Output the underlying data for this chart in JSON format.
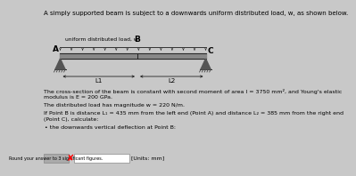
{
  "title_text": "A simply supported beam is subject to a downwards uniform distributed load, w, as shown below.",
  "beam_label_A": "A",
  "beam_label_B": "B",
  "beam_label_C": "C",
  "udl_label": "uniform distributed load, w",
  "L1_label": "L1",
  "L2_label": "L2",
  "para1": "The cross-section of the beam is constant with second moment of area I = 3750 mm², and Young's elastic",
  "para1b": "modulus is E = 200 GPa.",
  "para2": "The distributed load has magnitude w = 220 N/m.",
  "para3": "If Point B is distance L₁ = 435 mm from the left end (Point A) and distance L₂ = 385 mm from the right end",
  "para3b": "(Point C), calculate:",
  "bullet": "the downwards vertical deflection at Point B:",
  "answer_hint": "Round your answer to 3 significant figures.",
  "units": "[Units: mm]",
  "bg_color": "#c8c8c8",
  "text_color": "#000000",
  "beam_fill": "#888888",
  "udl_color": "#333333",
  "support_color": "#555555"
}
